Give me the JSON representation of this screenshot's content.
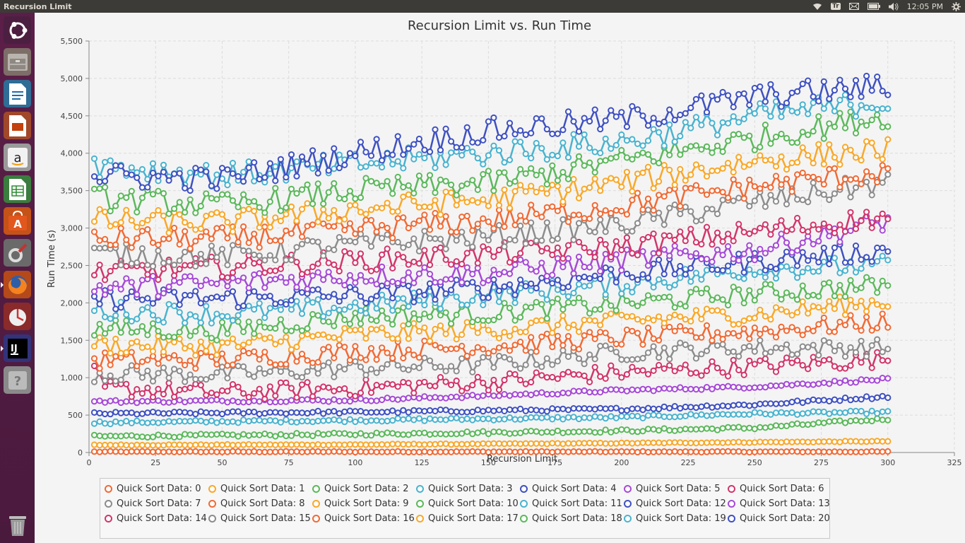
{
  "window": {
    "title": "Recursion Limit"
  },
  "tray": {
    "keyboard": "Tr",
    "clock": "12:05 PM"
  },
  "launcher": {
    "items": [
      {
        "name": "ubuntu-dash-icon",
        "color": "#c34113"
      },
      {
        "name": "files-icon",
        "color": "#8c8c8c"
      },
      {
        "name": "writer-icon",
        "color": "#1d6ea7"
      },
      {
        "name": "impress-icon",
        "color": "#c2410c"
      },
      {
        "name": "amazon-icon",
        "color": "#e6e6e6"
      },
      {
        "name": "calc-icon",
        "color": "#2e8b34"
      },
      {
        "name": "software-center-icon",
        "color": "#e2571e"
      },
      {
        "name": "system-settings-icon",
        "color": "#555555"
      },
      {
        "name": "firefox-icon",
        "color": "#e66000"
      },
      {
        "name": "update-manager-icon",
        "color": "#cc3333"
      },
      {
        "name": "intellij-icon",
        "color": "#2a5db0"
      },
      {
        "name": "help-icon",
        "color": "#888888"
      },
      {
        "name": "trash-icon",
        "color": "#7a7a7a"
      }
    ]
  },
  "chart_data": {
    "type": "line",
    "title": "Recursion Limit vs. Run Time",
    "xlabel": "Recursion Limit",
    "ylabel": "Run Time (s)",
    "xlim": [
      0,
      325
    ],
    "ylim": [
      0,
      5500
    ],
    "xticks": [
      "0",
      "25",
      "50",
      "75",
      "100",
      "125",
      "150",
      "175",
      "200",
      "225",
      "250",
      "275",
      "300",
      "325"
    ],
    "yticks": [
      "0",
      "500",
      "1,000",
      "1,500",
      "2,000",
      "2,500",
      "3,000",
      "3,500",
      "4,000",
      "4,500",
      "5,000",
      "5,500"
    ],
    "grid": true,
    "legend_position": "bottom",
    "x_range": [
      2,
      300
    ],
    "x_step": 2,
    "series": [
      {
        "name": "Quick Sort Data: 0",
        "color": "#f06a35",
        "keys": [
          [
            2,
            10
          ],
          [
            300,
            10
          ]
        ]
      },
      {
        "name": "Quick Sort Data: 1",
        "color": "#f8a82a",
        "keys": [
          [
            2,
            100
          ],
          [
            100,
            105
          ],
          [
            200,
            125
          ],
          [
            300,
            150
          ]
        ]
      },
      {
        "name": "Quick Sort Data: 2",
        "color": "#5cb85c",
        "keys": [
          [
            2,
            215
          ],
          [
            100,
            245
          ],
          [
            200,
            290
          ],
          [
            250,
            330
          ],
          [
            300,
            450
          ]
        ]
      },
      {
        "name": "Quick Sort Data: 3",
        "color": "#4ab3cf",
        "keys": [
          [
            2,
            400
          ],
          [
            100,
            430
          ],
          [
            200,
            470
          ],
          [
            250,
            520
          ],
          [
            300,
            540
          ]
        ]
      },
      {
        "name": "Quick Sort Data: 4",
        "color": "#3f51c1",
        "keys": [
          [
            2,
            520
          ],
          [
            100,
            540
          ],
          [
            200,
            580
          ],
          [
            250,
            640
          ],
          [
            300,
            750
          ]
        ]
      },
      {
        "name": "Quick Sort Data: 5",
        "color": "#a64ad6",
        "keys": [
          [
            2,
            680
          ],
          [
            100,
            700
          ],
          [
            150,
            760
          ],
          [
            200,
            830
          ],
          [
            250,
            880
          ],
          [
            300,
            980
          ]
        ]
      },
      {
        "name": "Quick Sort Data: 6",
        "color": "#d1366b",
        "keys": [
          [
            2,
            1050
          ],
          [
            6,
            860
          ],
          [
            50,
            800
          ],
          [
            100,
            860
          ],
          [
            150,
            940
          ],
          [
            200,
            1070
          ],
          [
            250,
            1150
          ],
          [
            300,
            1250
          ]
        ]
      },
      {
        "name": "Quick Sort Data: 7",
        "color": "#8c8c8c",
        "keys": [
          [
            2,
            1060
          ],
          [
            50,
            1040
          ],
          [
            100,
            1130
          ],
          [
            150,
            1180
          ],
          [
            200,
            1340
          ],
          [
            250,
            1400
          ],
          [
            300,
            1400
          ]
        ]
      },
      {
        "name": "Quick Sort Data: 8",
        "color": "#f06a35",
        "keys": [
          [
            2,
            1230
          ],
          [
            50,
            1240
          ],
          [
            100,
            1350
          ],
          [
            150,
            1420
          ],
          [
            200,
            1530
          ],
          [
            250,
            1620
          ],
          [
            300,
            1750
          ]
        ]
      },
      {
        "name": "Quick Sort Data: 9",
        "color": "#f8a82a",
        "keys": [
          [
            2,
            1440
          ],
          [
            50,
            1420
          ],
          [
            100,
            1570
          ],
          [
            150,
            1640
          ],
          [
            200,
            1760
          ],
          [
            250,
            1850
          ],
          [
            300,
            2020
          ]
        ]
      },
      {
        "name": "Quick Sort Data: 10",
        "color": "#5cb85c",
        "keys": [
          [
            2,
            1650
          ],
          [
            50,
            1630
          ],
          [
            100,
            1820
          ],
          [
            150,
            1860
          ],
          [
            200,
            1990
          ],
          [
            250,
            2120
          ],
          [
            300,
            2240
          ]
        ]
      },
      {
        "name": "Quick Sort Data: 11",
        "color": "#4ab3cf",
        "keys": [
          [
            2,
            1900
          ],
          [
            50,
            1850
          ],
          [
            100,
            1950
          ],
          [
            150,
            2100
          ],
          [
            200,
            2250
          ],
          [
            250,
            2450
          ],
          [
            300,
            2500
          ]
        ]
      },
      {
        "name": "Quick Sort Data: 12",
        "color": "#3f51c1",
        "keys": [
          [
            2,
            2050
          ],
          [
            50,
            2060
          ],
          [
            100,
            2100
          ],
          [
            150,
            2200
          ],
          [
            200,
            2400
          ],
          [
            250,
            2550
          ],
          [
            300,
            2700
          ]
        ]
      },
      {
        "name": "Quick Sort Data: 13",
        "color": "#a64ad6",
        "keys": [
          [
            2,
            2200
          ],
          [
            50,
            2260
          ],
          [
            100,
            2360
          ],
          [
            150,
            2400
          ],
          [
            200,
            2570
          ],
          [
            250,
            2700
          ],
          [
            300,
            3100
          ]
        ]
      },
      {
        "name": "Quick Sort Data: 14",
        "color": "#d1366b",
        "keys": [
          [
            2,
            2400
          ],
          [
            50,
            2480
          ],
          [
            100,
            2560
          ],
          [
            150,
            2650
          ],
          [
            200,
            2750
          ],
          [
            250,
            2950
          ],
          [
            300,
            3150
          ]
        ]
      },
      {
        "name": "Quick Sort Data: 15",
        "color": "#8c8c8c",
        "keys": [
          [
            2,
            2650
          ],
          [
            50,
            2620
          ],
          [
            100,
            2780
          ],
          [
            150,
            2880
          ],
          [
            200,
            3050
          ],
          [
            250,
            3350
          ],
          [
            300,
            3600
          ]
        ]
      },
      {
        "name": "Quick Sort Data: 16",
        "color": "#f06a35",
        "keys": [
          [
            2,
            2850
          ],
          [
            50,
            2860
          ],
          [
            100,
            2980
          ],
          [
            150,
            3100
          ],
          [
            200,
            3300
          ],
          [
            250,
            3560
          ],
          [
            300,
            3750
          ]
        ]
      },
      {
        "name": "Quick Sort Data: 17",
        "color": "#f8a82a",
        "keys": [
          [
            2,
            3100
          ],
          [
            50,
            3070
          ],
          [
            100,
            3250
          ],
          [
            150,
            3380
          ],
          [
            200,
            3600
          ],
          [
            250,
            3900
          ],
          [
            300,
            4050
          ]
        ]
      },
      {
        "name": "Quick Sort Data: 18",
        "color": "#5cb85c",
        "keys": [
          [
            2,
            3400
          ],
          [
            50,
            3300
          ],
          [
            100,
            3500
          ],
          [
            150,
            3600
          ],
          [
            200,
            3900
          ],
          [
            250,
            4200
          ],
          [
            300,
            4500
          ]
        ]
      },
      {
        "name": "Quick Sort Data: 19",
        "color": "#4ab3cf",
        "keys": [
          [
            2,
            3850
          ],
          [
            50,
            3700
          ],
          [
            100,
            3850
          ],
          [
            150,
            4000
          ],
          [
            200,
            4150
          ],
          [
            250,
            4500
          ],
          [
            300,
            4700
          ]
        ]
      },
      {
        "name": "Quick Sort Data: 20",
        "color": "#3f51c1",
        "keys": [
          [
            2,
            3700
          ],
          [
            50,
            3650
          ],
          [
            100,
            4000
          ],
          [
            150,
            4300
          ],
          [
            200,
            4450
          ],
          [
            250,
            4750
          ],
          [
            300,
            4900
          ]
        ]
      }
    ]
  }
}
